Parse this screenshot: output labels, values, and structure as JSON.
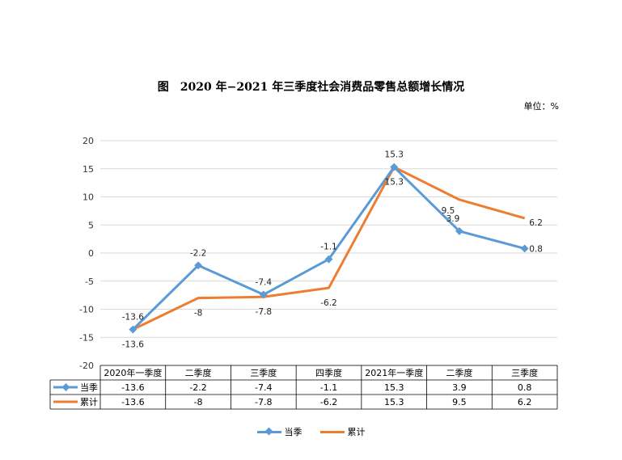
{
  "title": "图　2020 年−2021 年三季度社会消费品零售总额增长情况",
  "unit_label": "单位：%",
  "colors": {
    "quarter": "#5b9bd5",
    "cumulative": "#ed7d31"
  },
  "chart_data": {
    "type": "line",
    "categories": [
      "2020年一季度",
      "二季度",
      "三季度",
      "四季度",
      "2021年一季度",
      "二季度",
      "三季度"
    ],
    "series": [
      {
        "name": "当季",
        "values": [
          -13.6,
          -2.2,
          -7.4,
          -1.1,
          15.3,
          3.9,
          0.8
        ]
      },
      {
        "name": "累计",
        "values": [
          -13.6,
          -8,
          -7.8,
          -6.2,
          15.3,
          9.5,
          6.2
        ]
      }
    ],
    "ylim": [
      -20,
      20
    ],
    "yticks": [
      -20,
      -15,
      -10,
      -5,
      0,
      5,
      10,
      15,
      20
    ],
    "grid": true,
    "legend": "bottom",
    "data_table": true
  }
}
